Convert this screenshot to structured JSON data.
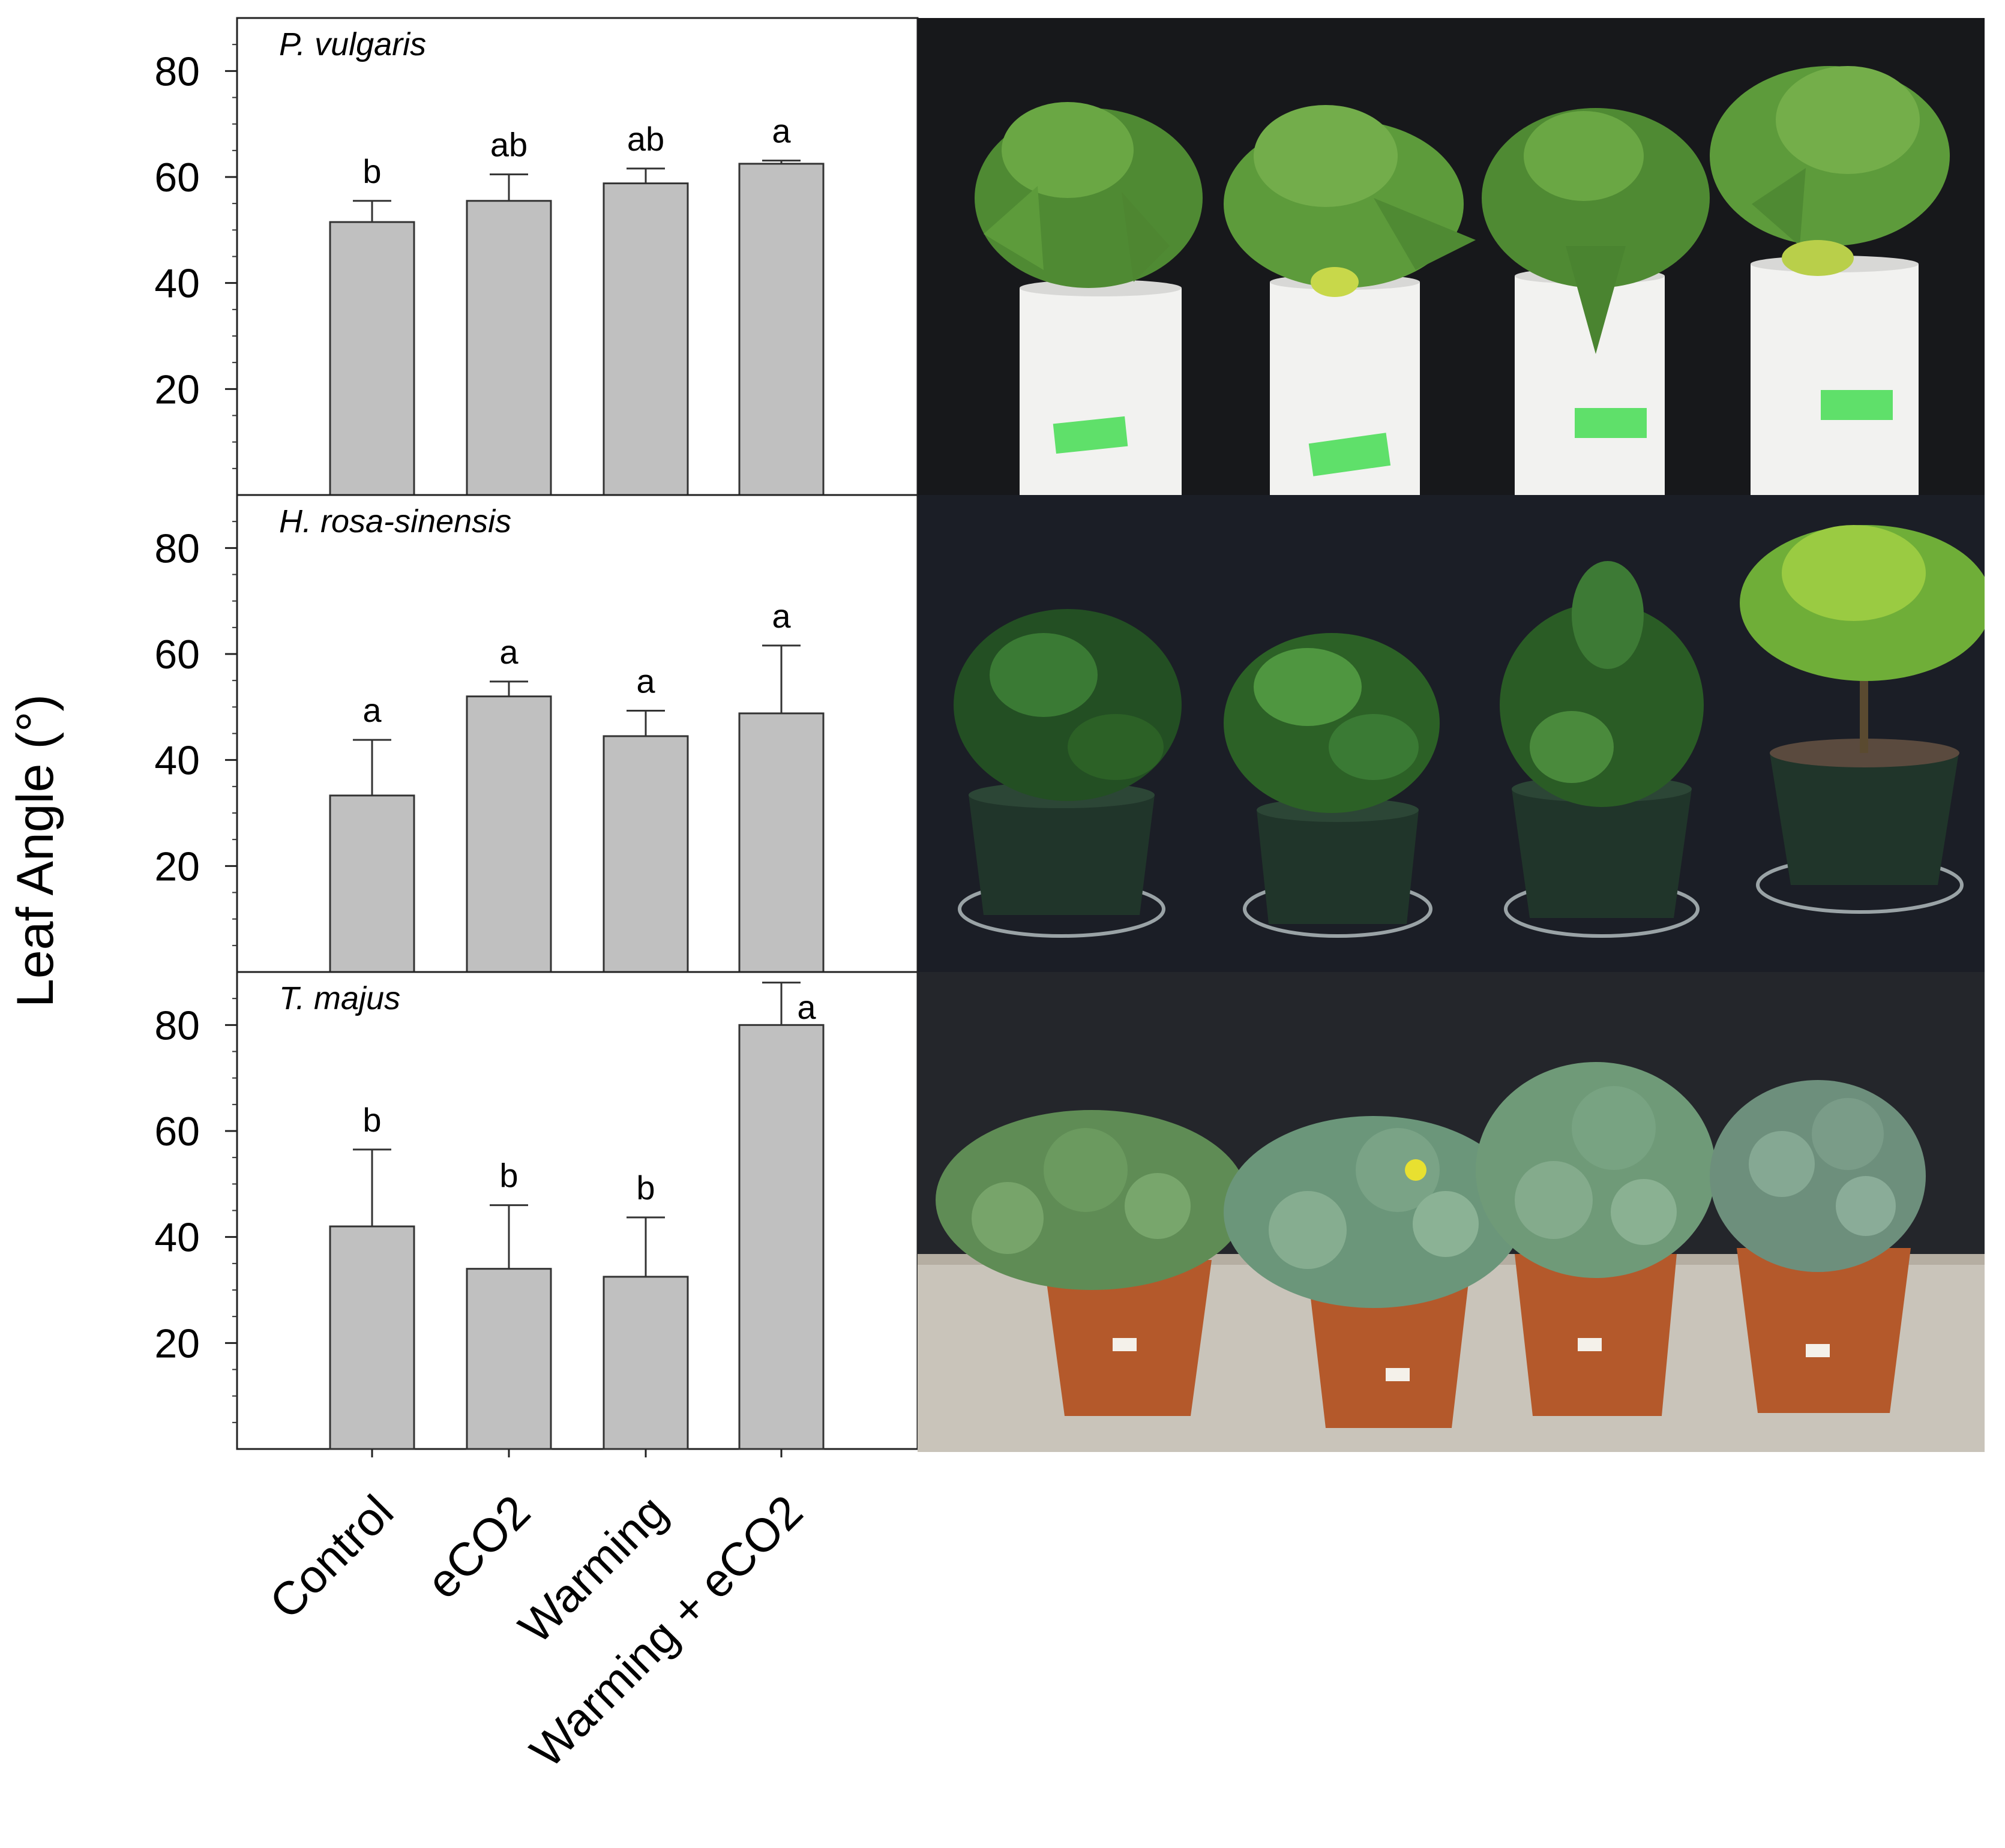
{
  "figure": {
    "ylabel": "Leaf Angle (°)"
  },
  "chart_data": [
    {
      "type": "bar",
      "title": "P. vulgaris",
      "categories": [
        "Control",
        "eCO2",
        "Warming",
        "Warming + eCO2"
      ],
      "values": [
        51.5,
        55.5,
        58.8,
        62.5
      ],
      "errors": [
        4.0,
        5.0,
        2.8,
        0.6
      ],
      "significance_letters": [
        "b",
        "ab",
        "ab",
        "a"
      ],
      "ylim": [
        0,
        90
      ],
      "yticks": [
        20,
        40,
        60,
        80
      ],
      "bar_color": "#c0c0c0",
      "grid": false
    },
    {
      "type": "bar",
      "title": "H. rosa-sinensis",
      "categories": [
        "Control",
        "eCO2",
        "Warming",
        "Warming + eCO2"
      ],
      "values": [
        33.3,
        52.0,
        44.5,
        48.8
      ],
      "errors": [
        10.5,
        2.8,
        4.8,
        12.8
      ],
      "significance_letters": [
        "a",
        "a",
        "a",
        "a"
      ],
      "ylim": [
        0,
        90
      ],
      "yticks": [
        20,
        40,
        60,
        80
      ],
      "bar_color": "#c0c0c0",
      "grid": false
    },
    {
      "type": "bar",
      "title": "T. majus",
      "categories": [
        "Control",
        "eCO2",
        "Warming",
        "Warming + eCO2"
      ],
      "values": [
        42.0,
        34.0,
        32.5,
        80.0
      ],
      "errors": [
        14.5,
        12.0,
        11.2,
        8.0
      ],
      "significance_letters": [
        "b",
        "b",
        "b",
        "a"
      ],
      "ylim": [
        0,
        90
      ],
      "yticks": [
        20,
        40,
        60,
        80
      ],
      "bar_color": "#c0c0c0",
      "grid": false
    }
  ],
  "photos": [
    {
      "name": "P. vulgaris",
      "background": "#17181b",
      "pot": "white-pvc-tube",
      "plant_color": "#5c9a3a"
    },
    {
      "name": "H. rosa-sinensis",
      "background": "#1b1e26",
      "pot": "dark-green-pot",
      "plant_color": "#2c6126"
    },
    {
      "name": "T. majus",
      "background": "#24262b",
      "pot": "terracotta-pot",
      "plant_color": "#6f9a78"
    }
  ]
}
